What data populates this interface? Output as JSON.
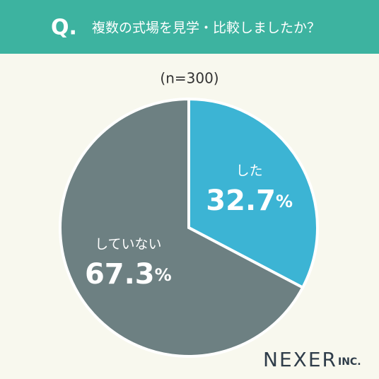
{
  "chart_data": {
    "type": "pie",
    "title_prefix": "Q.",
    "title": "複数の式場を見学・比較しましたか？",
    "subtitle": "(n=300)",
    "categories": [
      "した",
      "していない"
    ],
    "values": [
      32.7,
      67.3
    ],
    "value_labels": [
      "32.7%",
      "67.3%"
    ],
    "colors": [
      "#3cb4d4",
      "#6d8082"
    ],
    "logo": {
      "name": "NEXER",
      "suffix": "INC."
    }
  }
}
